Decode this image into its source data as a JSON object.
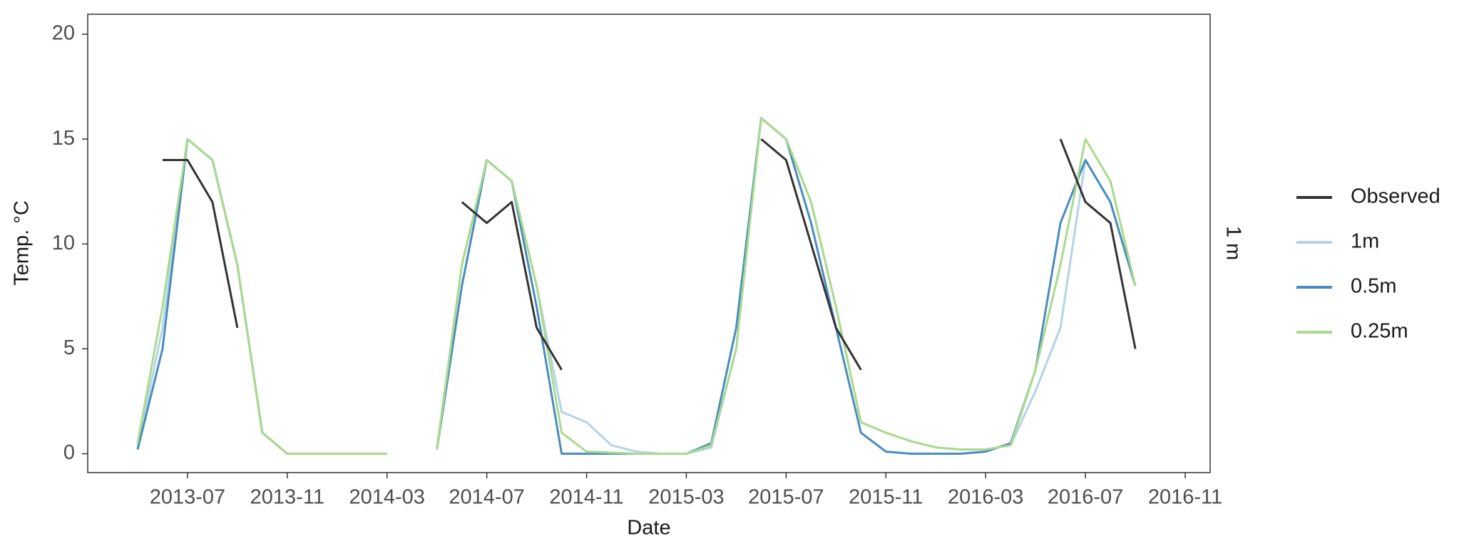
{
  "chart_data": {
    "type": "line",
    "x_label": "Date",
    "y_label": "Temp. °C",
    "facet_label": "1 m",
    "x": [
      "2013-05",
      "2013-06",
      "2013-07",
      "2013-08",
      "2013-09",
      "2013-10",
      "2013-11",
      "2013-12",
      "2014-01",
      "2014-02",
      "2014-03",
      "2014-04",
      "2014-05",
      "2014-06",
      "2014-07",
      "2014-08",
      "2014-09",
      "2014-10",
      "2014-11",
      "2014-12",
      "2015-01",
      "2015-02",
      "2015-03",
      "2015-04",
      "2015-05",
      "2015-06",
      "2015-07",
      "2015-08",
      "2015-09",
      "2015-10",
      "2015-11",
      "2015-12",
      "2016-01",
      "2016-02",
      "2016-03",
      "2016-04",
      "2016-05",
      "2016-06",
      "2016-07",
      "2016-08",
      "2016-09"
    ],
    "series": [
      {
        "name": "Observed",
        "color": "#333333",
        "values": [
          null,
          14,
          14,
          12,
          6,
          null,
          null,
          null,
          null,
          null,
          null,
          null,
          null,
          12,
          11,
          12,
          6,
          4,
          null,
          null,
          null,
          null,
          null,
          null,
          null,
          15,
          14,
          10,
          6,
          4,
          null,
          null,
          null,
          null,
          null,
          null,
          null,
          15,
          12,
          11,
          5
        ]
      },
      {
        "name": "1m",
        "color": "#b3d3e8",
        "values": [
          0.3,
          6,
          15,
          14,
          9,
          1,
          0,
          0,
          0,
          0,
          0,
          null,
          0.3,
          9,
          14,
          13,
          8,
          2,
          1.5,
          0.4,
          0.1,
          0,
          0,
          0.3,
          5,
          16,
          15,
          12,
          7,
          1.5,
          1,
          0.6,
          0.3,
          0.2,
          0.2,
          0.4,
          3,
          6,
          14,
          12,
          8
        ]
      },
      {
        "name": "0.5m",
        "color": "#4a8bc0",
        "values": [
          0.2,
          5,
          15,
          14,
          9,
          1,
          0,
          0,
          0,
          0,
          0,
          null,
          0.2,
          8,
          14,
          13,
          7,
          0,
          0,
          0,
          0,
          0,
          0,
          0.5,
          6,
          16,
          15,
          11,
          6,
          1,
          0.1,
          0,
          0,
          0,
          0.1,
          0.5,
          4,
          11,
          14,
          12,
          8
        ]
      },
      {
        "name": "0.25m",
        "color": "#a8db8c",
        "values": [
          0.5,
          7,
          15,
          14,
          9,
          1,
          0,
          0,
          0,
          0,
          0,
          null,
          0.2,
          9,
          14,
          13,
          8,
          1,
          0.1,
          0.05,
          0,
          0,
          0,
          0.4,
          5,
          16,
          15,
          12,
          7,
          1.5,
          1,
          0.6,
          0.3,
          0.2,
          0.2,
          0.4,
          4,
          9,
          15,
          13,
          8
        ]
      }
    ],
    "xlim": [
      "2013-03",
      "2016-12"
    ],
    "xticks": [
      "2013-07",
      "2013-11",
      "2014-03",
      "2014-07",
      "2014-11",
      "2015-03",
      "2015-07",
      "2015-11",
      "2016-03",
      "2016-07",
      "2016-11"
    ],
    "ylim": [
      -0.9,
      20.95
    ],
    "yticks": [
      0,
      5,
      10,
      15,
      20
    ],
    "grid": false,
    "legend": "right"
  }
}
